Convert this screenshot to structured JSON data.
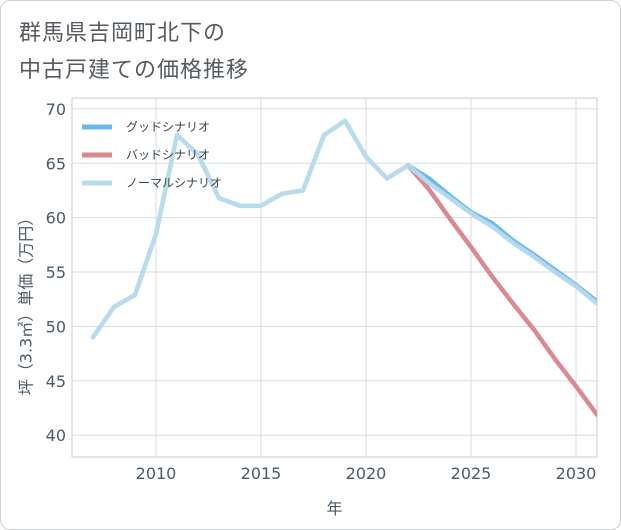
{
  "title_lines": [
    "群馬県吉岡町北下の",
    "中古戸建ての価格推移"
  ],
  "chart_data": {
    "type": "line",
    "title": "群馬県吉岡町北下の中古戸建ての価格推移",
    "xlabel": "年",
    "ylabel": "坪（3.3㎡）単価（万円）",
    "xlim": [
      2006,
      2031
    ],
    "ylim": [
      38,
      71
    ],
    "xticks": [
      2010,
      2015,
      2020,
      2025,
      2030
    ],
    "yticks": [
      40,
      45,
      50,
      55,
      60,
      65,
      70
    ],
    "grid": true,
    "legend_position": "top-left",
    "series": [
      {
        "name": "グッドシナリオ",
        "color": "#6cb8ea",
        "x": [
          2022,
          2023,
          2024,
          2025,
          2026,
          2027,
          2028,
          2029,
          2030,
          2031
        ],
        "y": [
          64.8,
          63.6,
          62.0,
          60.5,
          59.5,
          57.9,
          56.6,
          55.2,
          53.8,
          52.3
        ]
      },
      {
        "name": "バッドシナリオ",
        "color": "#dc8890",
        "x": [
          2022,
          2023,
          2024,
          2025,
          2026,
          2027,
          2028,
          2029,
          2030,
          2031
        ],
        "y": [
          64.8,
          62.6,
          59.9,
          57.3,
          54.6,
          52.1,
          49.7,
          47.0,
          44.5,
          41.9
        ]
      },
      {
        "name": "ノーマルシナリオ",
        "color": "#b9dcec",
        "x": [
          2007,
          2008,
          2009,
          2010,
          2011,
          2012,
          2013,
          2014,
          2015,
          2016,
          2017,
          2018,
          2019,
          2020,
          2021,
          2022,
          2023,
          2024,
          2025,
          2026,
          2027,
          2028,
          2029,
          2030,
          2031
        ],
        "y": [
          49.0,
          51.8,
          52.9,
          58.5,
          67.6,
          65.8,
          61.8,
          61.1,
          61.1,
          62.2,
          62.5,
          67.6,
          68.9,
          65.6,
          63.6,
          64.8,
          63.2,
          61.8,
          60.4,
          59.2,
          57.7,
          56.4,
          55.0,
          53.7,
          52.1
        ]
      }
    ]
  }
}
